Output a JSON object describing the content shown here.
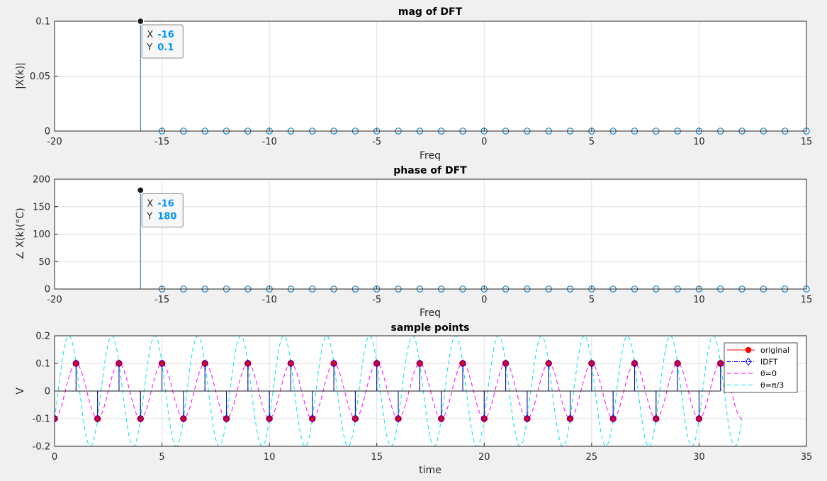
{
  "chart_data": [
    {
      "type": "stem",
      "title": "mag of DFT",
      "xlabel": "Freq",
      "ylabel": "|X(k)|",
      "xlim": [
        -20,
        15
      ],
      "ylim": [
        0,
        0.1
      ],
      "xticks": [
        "-20",
        "-15",
        "-10",
        "-5",
        "0",
        "5",
        "10",
        "15"
      ],
      "yticks": [
        "0",
        "0.05",
        "0.1"
      ],
      "grid": true,
      "x": [
        -16,
        -15,
        -14,
        -13,
        -12,
        -11,
        -10,
        -9,
        -8,
        -7,
        -6,
        -5,
        -4,
        -3,
        -2,
        -1,
        0,
        1,
        2,
        3,
        4,
        5,
        6,
        7,
        8,
        9,
        10,
        11,
        12,
        13,
        14,
        15
      ],
      "y": [
        0.1,
        0,
        0,
        0,
        0,
        0,
        0,
        0,
        0,
        0,
        0,
        0,
        0,
        0,
        0,
        0,
        0,
        0,
        0,
        0,
        0,
        0,
        0,
        0,
        0,
        0,
        0,
        0,
        0,
        0,
        0,
        0
      ],
      "datatip": {
        "x_label": "X",
        "x_value": "-16",
        "y_label": "Y",
        "y_value": "0.1"
      }
    },
    {
      "type": "stem",
      "title": "phase of DFT",
      "xlabel": "Freq",
      "ylabel": "∠ X(k)(°C)",
      "xlim": [
        -20,
        15
      ],
      "ylim": [
        0,
        200
      ],
      "xticks": [
        "-20",
        "-15",
        "-10",
        "-5",
        "0",
        "5",
        "10",
        "15"
      ],
      "yticks": [
        "0",
        "50",
        "100",
        "150",
        "200"
      ],
      "grid": true,
      "x": [
        -16,
        -15,
        -14,
        -13,
        -12,
        -11,
        -10,
        -9,
        -8,
        -7,
        -6,
        -5,
        -4,
        -3,
        -2,
        -1,
        0,
        1,
        2,
        3,
        4,
        5,
        6,
        7,
        8,
        9,
        10,
        11,
        12,
        13,
        14,
        15
      ],
      "y": [
        180,
        0,
        0,
        0,
        0,
        0,
        0,
        0,
        0,
        0,
        0,
        0,
        0,
        0,
        0,
        0,
        0,
        0,
        0,
        0,
        0,
        0,
        0,
        0,
        0,
        0,
        0,
        0,
        0,
        0,
        0,
        0
      ],
      "datatip": {
        "x_label": "X",
        "x_value": "-16",
        "y_label": "Y",
        "y_value": "180"
      }
    },
    {
      "type": "line",
      "title": "sample points",
      "xlabel": "time",
      "ylabel": "V",
      "xlim": [
        0,
        35
      ],
      "ylim": [
        -0.2,
        0.2
      ],
      "xticks": [
        "0",
        "5",
        "10",
        "15",
        "20",
        "25",
        "30",
        "35"
      ],
      "yticks": [
        "-0.2",
        "-0.1",
        "0",
        "0.1",
        "0.2"
      ],
      "grid": true,
      "legend_position": "top-right",
      "series": [
        {
          "name": "original",
          "style": "solid",
          "color": "#ff0000",
          "marker": "filled-circle",
          "x": [
            0,
            1,
            2,
            3,
            4,
            5,
            6,
            7,
            8,
            9,
            10,
            11,
            12,
            13,
            14,
            15,
            16,
            17,
            18,
            19,
            20,
            21,
            22,
            23,
            24,
            25,
            26,
            27,
            28,
            29,
            30,
            31
          ],
          "y": [
            -0.1,
            0.1,
            -0.1,
            0.1,
            -0.1,
            0.1,
            -0.1,
            0.1,
            -0.1,
            0.1,
            -0.1,
            0.1,
            -0.1,
            0.1,
            -0.1,
            0.1,
            -0.1,
            0.1,
            -0.1,
            0.1,
            -0.1,
            0.1,
            -0.1,
            0.1,
            -0.1,
            0.1,
            -0.1,
            0.1,
            -0.1,
            0.1,
            -0.1,
            0.1
          ]
        },
        {
          "name": "IDFT",
          "style": "dash-dot",
          "color": "#0000ff",
          "marker": "diamond",
          "x": [
            0,
            1,
            2,
            3,
            4,
            5,
            6,
            7,
            8,
            9,
            10,
            11,
            12,
            13,
            14,
            15,
            16,
            17,
            18,
            19,
            20,
            21,
            22,
            23,
            24,
            25,
            26,
            27,
            28,
            29,
            30,
            31
          ],
          "y": [
            -0.1,
            0.1,
            -0.1,
            0.1,
            -0.1,
            0.1,
            -0.1,
            0.1,
            -0.1,
            0.1,
            -0.1,
            0.1,
            -0.1,
            0.1,
            -0.1,
            0.1,
            -0.1,
            0.1,
            -0.1,
            0.1,
            -0.1,
            0.1,
            -0.1,
            0.1,
            -0.1,
            0.1,
            -0.1,
            0.1,
            -0.1,
            0.1,
            -0.1,
            0.1
          ]
        },
        {
          "name": "θ=0",
          "style": "dashed",
          "color": "#ff00ff",
          "function": "-0.1*cos(pi*t)",
          "t_range": [
            0,
            32
          ]
        },
        {
          "name": "θ=π/3",
          "style": "dashed",
          "color": "#00e5e5",
          "function": "-0.2*cos(pi*t + pi/3)",
          "t_range": [
            0,
            32
          ]
        }
      ]
    }
  ],
  "colors": {
    "stem": "#0072bd",
    "background": "#f0f0f0",
    "axes_bg": "#ffffff",
    "datatip_value": "#0096ff"
  }
}
